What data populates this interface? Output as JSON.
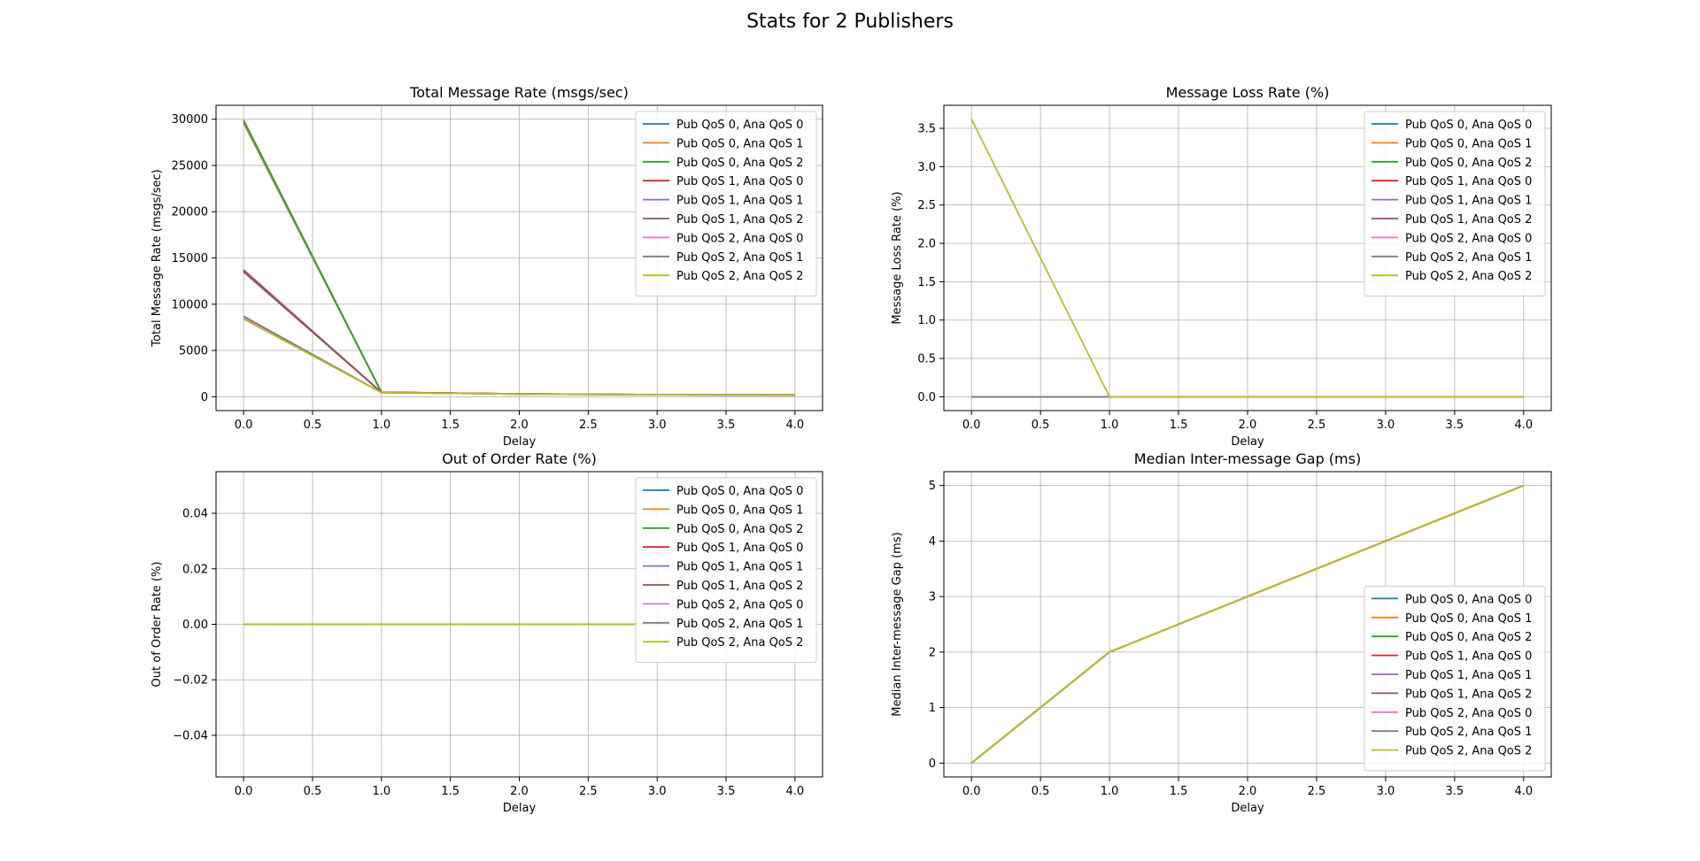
{
  "figure": {
    "title": "Stats for 2 Publishers"
  },
  "colors": [
    "#1f77b4",
    "#ff7f0e",
    "#2ca02c",
    "#d62728",
    "#9467bd",
    "#8c564b",
    "#e377c2",
    "#7f7f7f",
    "#bcbd22"
  ],
  "chart_data": [
    {
      "type": "line",
      "title": "Total Message Rate (msgs/sec)",
      "xlabel": "Delay",
      "ylabel": "Total Message Rate (msgs/sec)",
      "xlim": [
        -0.2,
        4.2
      ],
      "ylim": [
        -1500,
        31500
      ],
      "xticks": [
        0.0,
        0.5,
        1.0,
        1.5,
        2.0,
        2.5,
        3.0,
        3.5,
        4.0
      ],
      "xtick_labels": [
        "0.0",
        "0.5",
        "1.0",
        "1.5",
        "2.0",
        "2.5",
        "3.0",
        "3.5",
        "4.0"
      ],
      "yticks": [
        0,
        5000,
        10000,
        15000,
        20000,
        25000,
        30000
      ],
      "ytick_labels": [
        "0",
        "5000",
        "10000",
        "15000",
        "20000",
        "25000",
        "30000"
      ],
      "grid": true,
      "legend": "upper-right",
      "x": [
        0,
        1,
        2,
        3,
        4
      ],
      "series": [
        {
          "name": "Pub QoS 0, Ana QoS 0",
          "values": [
            29600,
            480,
            300,
            220,
            200
          ]
        },
        {
          "name": "Pub QoS 0, Ana QoS 1",
          "values": [
            29700,
            480,
            300,
            220,
            200
          ]
        },
        {
          "name": "Pub QoS 0, Ana QoS 2",
          "values": [
            29900,
            480,
            300,
            220,
            200
          ]
        },
        {
          "name": "Pub QoS 1, Ana QoS 0",
          "values": [
            13700,
            470,
            300,
            220,
            200
          ]
        },
        {
          "name": "Pub QoS 1, Ana QoS 1",
          "values": [
            13600,
            470,
            300,
            220,
            200
          ]
        },
        {
          "name": "Pub QoS 1, Ana QoS 2",
          "values": [
            13500,
            470,
            300,
            220,
            200
          ]
        },
        {
          "name": "Pub QoS 2, Ana QoS 0",
          "values": [
            8600,
            440,
            290,
            210,
            190
          ]
        },
        {
          "name": "Pub QoS 2, Ana QoS 1",
          "values": [
            8700,
            440,
            290,
            210,
            190
          ]
        },
        {
          "name": "Pub QoS 2, Ana QoS 2",
          "values": [
            8400,
            440,
            290,
            210,
            190
          ]
        }
      ]
    },
    {
      "type": "line",
      "title": "Message Loss Rate (%)",
      "xlabel": "Delay",
      "ylabel": "Message Loss Rate (%)",
      "xlim": [
        -0.2,
        4.2
      ],
      "ylim": [
        -0.18,
        3.8
      ],
      "xticks": [
        0.0,
        0.5,
        1.0,
        1.5,
        2.0,
        2.5,
        3.0,
        3.5,
        4.0
      ],
      "xtick_labels": [
        "0.0",
        "0.5",
        "1.0",
        "1.5",
        "2.0",
        "2.5",
        "3.0",
        "3.5",
        "4.0"
      ],
      "yticks": [
        0,
        0.5,
        1.0,
        1.5,
        2.0,
        2.5,
        3.0,
        3.5
      ],
      "ytick_labels": [
        "0.0",
        "0.5",
        "1.0",
        "1.5",
        "2.0",
        "2.5",
        "3.0",
        "3.5"
      ],
      "grid": true,
      "legend": "upper-right",
      "x": [
        0,
        1,
        2,
        3,
        4
      ],
      "series": [
        {
          "name": "Pub QoS 0, Ana QoS 0",
          "values": [
            0,
            0,
            0,
            0,
            0
          ]
        },
        {
          "name": "Pub QoS 0, Ana QoS 1",
          "values": [
            0,
            0,
            0,
            0,
            0
          ]
        },
        {
          "name": "Pub QoS 0, Ana QoS 2",
          "values": [
            0,
            0,
            0,
            0,
            0
          ]
        },
        {
          "name": "Pub QoS 1, Ana QoS 0",
          "values": [
            0,
            0,
            0,
            0,
            0
          ]
        },
        {
          "name": "Pub QoS 1, Ana QoS 1",
          "values": [
            0,
            0,
            0,
            0,
            0
          ]
        },
        {
          "name": "Pub QoS 1, Ana QoS 2",
          "values": [
            0,
            0,
            0,
            0,
            0
          ]
        },
        {
          "name": "Pub QoS 2, Ana QoS 0",
          "values": [
            0,
            0,
            0,
            0,
            0
          ]
        },
        {
          "name": "Pub QoS 2, Ana QoS 1",
          "values": [
            0,
            0,
            0,
            0,
            0
          ]
        },
        {
          "name": "Pub QoS 2, Ana QoS 2",
          "values": [
            3.62,
            0,
            0,
            0,
            0
          ]
        }
      ]
    },
    {
      "type": "line",
      "title": "Out of Order Rate (%)",
      "xlabel": "Delay",
      "ylabel": "Out of Order Rate (%)",
      "xlim": [
        -0.2,
        4.2
      ],
      "ylim": [
        -0.055,
        0.055
      ],
      "xticks": [
        0.0,
        0.5,
        1.0,
        1.5,
        2.0,
        2.5,
        3.0,
        3.5,
        4.0
      ],
      "xtick_labels": [
        "0.0",
        "0.5",
        "1.0",
        "1.5",
        "2.0",
        "2.5",
        "3.0",
        "3.5",
        "4.0"
      ],
      "yticks": [
        -0.04,
        -0.02,
        0.0,
        0.02,
        0.04
      ],
      "ytick_labels": [
        "−0.04",
        "−0.02",
        "0.00",
        "0.02",
        "0.04"
      ],
      "grid": true,
      "legend": "upper-right",
      "x": [
        0,
        1,
        2,
        3,
        4
      ],
      "series": [
        {
          "name": "Pub QoS 0, Ana QoS 0",
          "values": [
            0,
            0,
            0,
            0,
            0
          ]
        },
        {
          "name": "Pub QoS 0, Ana QoS 1",
          "values": [
            0,
            0,
            0,
            0,
            0
          ]
        },
        {
          "name": "Pub QoS 0, Ana QoS 2",
          "values": [
            0,
            0,
            0,
            0,
            0
          ]
        },
        {
          "name": "Pub QoS 1, Ana QoS 0",
          "values": [
            0,
            0,
            0,
            0,
            0
          ]
        },
        {
          "name": "Pub QoS 1, Ana QoS 1",
          "values": [
            0,
            0,
            0,
            0,
            0
          ]
        },
        {
          "name": "Pub QoS 1, Ana QoS 2",
          "values": [
            0,
            0,
            0,
            0,
            0
          ]
        },
        {
          "name": "Pub QoS 2, Ana QoS 0",
          "values": [
            0,
            0,
            0,
            0,
            0
          ]
        },
        {
          "name": "Pub QoS 2, Ana QoS 1",
          "values": [
            0,
            0,
            0,
            0,
            0
          ]
        },
        {
          "name": "Pub QoS 2, Ana QoS 2",
          "values": [
            0,
            0,
            0,
            0,
            0
          ]
        }
      ]
    },
    {
      "type": "line",
      "title": "Median Inter-message Gap (ms)",
      "xlabel": "Delay",
      "ylabel": "Median Inter-message Gap (ms)",
      "xlim": [
        -0.2,
        4.2
      ],
      "ylim": [
        -0.25,
        5.25
      ],
      "xticks": [
        0.0,
        0.5,
        1.0,
        1.5,
        2.0,
        2.5,
        3.0,
        3.5,
        4.0
      ],
      "xtick_labels": [
        "0.0",
        "0.5",
        "1.0",
        "1.5",
        "2.0",
        "2.5",
        "3.0",
        "3.5",
        "4.0"
      ],
      "yticks": [
        0,
        1,
        2,
        3,
        4,
        5
      ],
      "ytick_labels": [
        "0",
        "1",
        "2",
        "3",
        "4",
        "5"
      ],
      "grid": true,
      "legend": "lower-right",
      "x": [
        0,
        1,
        2,
        3,
        4
      ],
      "series": [
        {
          "name": "Pub QoS 0, Ana QoS 0",
          "values": [
            0,
            2,
            3,
            4,
            5
          ]
        },
        {
          "name": "Pub QoS 0, Ana QoS 1",
          "values": [
            0,
            2,
            3,
            4,
            5
          ]
        },
        {
          "name": "Pub QoS 0, Ana QoS 2",
          "values": [
            0,
            2,
            3,
            4,
            5
          ]
        },
        {
          "name": "Pub QoS 1, Ana QoS 0",
          "values": [
            0,
            2,
            3,
            4,
            5
          ]
        },
        {
          "name": "Pub QoS 1, Ana QoS 1",
          "values": [
            0,
            2,
            3,
            4,
            5
          ]
        },
        {
          "name": "Pub QoS 1, Ana QoS 2",
          "values": [
            0,
            2,
            3,
            4,
            5
          ]
        },
        {
          "name": "Pub QoS 2, Ana QoS 0",
          "values": [
            0,
            2,
            3,
            4,
            5
          ]
        },
        {
          "name": "Pub QoS 2, Ana QoS 1",
          "values": [
            0,
            2,
            3,
            4,
            5
          ]
        },
        {
          "name": "Pub QoS 2, Ana QoS 2",
          "values": [
            0,
            2,
            3,
            4,
            5
          ]
        }
      ]
    }
  ]
}
